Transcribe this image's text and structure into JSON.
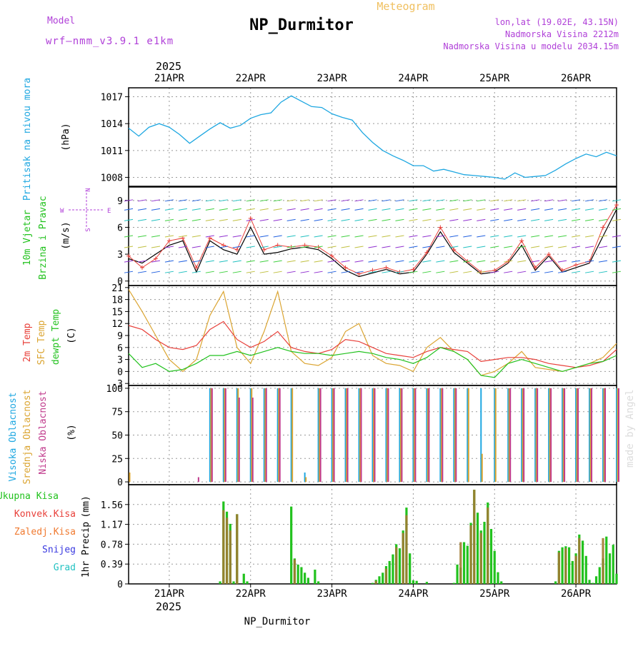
{
  "header": {
    "model_label": "Model",
    "model_name": "wrf–nmm_v3.9.1  e1km",
    "station": "NP_Durmitor",
    "subtitle": "Meteogram",
    "coords": "lon,lat (19.02E, 43.15N)",
    "elevation": "Nadmorska Visina 2212m",
    "model_elevation": "Nadmorska Visina u modelu 2034.15m",
    "year": "2025",
    "footer_station": "NP_Durmitor",
    "watermark": "made by Angel"
  },
  "colors": {
    "pressure": "#1ea7e1",
    "wind_label": "#22c21e",
    "temp_2m": "#e8403a",
    "temp_sfc": "#dba532",
    "dewpoint": "#22c21e",
    "cloud_high": "#1ea7e1",
    "cloud_mid": "#dba532",
    "cloud_low": "#c03a8c",
    "precip_total": "#22c21e",
    "precip_conv": "#e8403a",
    "precip_freeze": "#f07a30",
    "snow": "#3a3ae0",
    "hail": "#22c2c2",
    "header_purple": "#b040d8",
    "header_orange": "#f0c060"
  },
  "chart_data": [
    {
      "type": "line",
      "panel": "pressure",
      "ylabel": "Pritisak na nivou mora",
      "unit": "(hPa)",
      "x_ticks": [
        "21APR",
        "22APR",
        "23APR",
        "24APR",
        "25APR",
        "26APR"
      ],
      "x_start": "2025-04-20 12:00",
      "x_end": "2025-04-26 12:00",
      "y_ticks": [
        1008,
        1011,
        1014,
        1017
      ],
      "ylim": [
        1007,
        1018
      ],
      "series": [
        {
          "x": [
            0,
            3,
            6,
            9,
            12,
            15,
            18,
            21,
            24,
            27,
            30,
            33,
            36,
            39,
            42,
            45,
            48,
            51,
            54,
            57,
            60,
            63,
            66,
            69,
            72,
            75,
            78,
            81,
            84,
            87,
            90,
            93,
            96,
            99,
            102,
            105,
            108,
            111,
            114,
            117,
            120,
            123,
            126,
            129,
            132,
            135,
            138,
            141,
            144
          ],
          "values": [
            1013.5,
            1012.6,
            1013.6,
            1014.0,
            1013.6,
            1012.8,
            1011.8,
            1012.6,
            1013.4,
            1014.1,
            1013.5,
            1013.8,
            1014.6,
            1015.0,
            1015.2,
            1016.4,
            1017.1,
            1016.5,
            1015.9,
            1015.8,
            1015.1,
            1014.7,
            1014.4,
            1013.0,
            1011.9,
            1011.0,
            1010.4,
            1009.9,
            1009.3,
            1009.3,
            1008.7,
            1008.9,
            1008.6,
            1008.3,
            1008.2,
            1008.1,
            1008.0,
            1007.8,
            1008.5,
            1008.0,
            1008.1,
            1008.2,
            1008.8,
            1009.5,
            1010.1,
            1010.6,
            1010.3,
            1010.8,
            1010.4
          ]
        }
      ]
    },
    {
      "type": "line",
      "panel": "wind",
      "ylabel_lines": [
        "10m Vjetar",
        "Brzina i Pravac"
      ],
      "unit": "(m/s)",
      "compass": [
        "N",
        "E",
        "S",
        "W"
      ],
      "y_ticks": [
        0,
        3,
        6,
        9
      ],
      "ylim": [
        -0.5,
        10.5
      ],
      "series": [
        {
          "name": "speed",
          "x": [
            0,
            4,
            8,
            12,
            16,
            20,
            24,
            28,
            32,
            36,
            40,
            44,
            48,
            52,
            56,
            60,
            64,
            68,
            72,
            76,
            80,
            84,
            88,
            92,
            96,
            100,
            104,
            108,
            112,
            116,
            120,
            124,
            128,
            132,
            136,
            140,
            144
          ],
          "values": [
            2.5,
            2.0,
            3.0,
            4.0,
            4.5,
            1.0,
            4.5,
            3.5,
            3.0,
            6.0,
            3.0,
            3.2,
            3.6,
            3.8,
            3.5,
            2.5,
            1.2,
            0.5,
            0.9,
            1.3,
            0.8,
            1.0,
            3.0,
            5.5,
            3.2,
            2.0,
            0.8,
            1.0,
            2.0,
            4.0,
            1.2,
            2.8,
            1.0,
            1.5,
            2.0,
            5.0,
            8.0
          ]
        },
        {
          "name": "gust",
          "x": [
            0,
            4,
            8,
            12,
            16,
            20,
            24,
            28,
            32,
            36,
            40,
            44,
            48,
            52,
            56,
            60,
            64,
            68,
            72,
            76,
            80,
            84,
            88,
            92,
            96,
            100,
            104,
            108,
            112,
            116,
            120,
            124,
            128,
            132,
            136,
            140,
            144
          ],
          "values": [
            2.8,
            1.5,
            2.5,
            4.5,
            4.8,
            1.5,
            4.8,
            4.0,
            3.5,
            7.0,
            3.5,
            4.0,
            3.8,
            4.0,
            3.8,
            2.8,
            1.5,
            0.8,
            1.2,
            1.5,
            1.0,
            1.3,
            3.2,
            6.0,
            3.5,
            2.2,
            1.0,
            1.2,
            2.2,
            4.5,
            1.5,
            3.0,
            1.2,
            1.8,
            2.2,
            6.0,
            8.5
          ]
        }
      ]
    },
    {
      "type": "line",
      "panel": "temperature",
      "ylabel_lines": [
        "2m Temp",
        "SFC Temp",
        "dewpt Temp"
      ],
      "unit": "(C)",
      "y_ticks": [
        -3,
        0,
        3,
        6,
        9,
        12,
        15,
        18,
        21
      ],
      "ylim": [
        -3.5,
        21.5
      ],
      "series": [
        {
          "name": "2m Temp",
          "x": [
            0,
            4,
            8,
            12,
            16,
            20,
            24,
            28,
            32,
            36,
            40,
            44,
            48,
            52,
            56,
            60,
            64,
            68,
            72,
            76,
            80,
            84,
            88,
            92,
            96,
            100,
            104,
            108,
            112,
            116,
            120,
            124,
            128,
            132,
            136,
            140,
            144
          ],
          "values": [
            11.5,
            10.5,
            8.0,
            6.0,
            5.5,
            6.5,
            10.5,
            12.5,
            8.0,
            6.0,
            7.5,
            10.0,
            6.0,
            5.0,
            4.5,
            5.5,
            8.0,
            7.5,
            6.0,
            4.5,
            4.0,
            3.5,
            5.0,
            6.0,
            5.5,
            5.0,
            2.5,
            3.0,
            3.5,
            3.5,
            3.0,
            2.0,
            1.5,
            1.0,
            1.5,
            2.5,
            5.5
          ]
        },
        {
          "name": "SFC Temp",
          "x": [
            0,
            4,
            8,
            12,
            16,
            20,
            24,
            28,
            32,
            36,
            40,
            44,
            48,
            52,
            56,
            60,
            64,
            68,
            72,
            76,
            80,
            84,
            88,
            92,
            96,
            100,
            104,
            108,
            112,
            116,
            120,
            124,
            128,
            132,
            136,
            140,
            144
          ],
          "values": [
            20.5,
            15.0,
            9.0,
            3.0,
            0.0,
            3.0,
            14.0,
            20.0,
            6.0,
            2.0,
            10.0,
            20.0,
            5.0,
            2.0,
            1.5,
            3.5,
            10.0,
            12.0,
            4.0,
            2.0,
            1.5,
            0.0,
            6.0,
            8.5,
            5.0,
            3.0,
            -1.0,
            0.0,
            2.0,
            5.0,
            1.0,
            0.5,
            0.0,
            1.0,
            2.0,
            3.5,
            7.0
          ]
        },
        {
          "name": "dewpt Temp",
          "x": [
            0,
            4,
            8,
            12,
            16,
            20,
            24,
            28,
            32,
            36,
            40,
            44,
            48,
            52,
            56,
            60,
            64,
            68,
            72,
            76,
            80,
            84,
            88,
            92,
            96,
            100,
            104,
            108,
            112,
            116,
            120,
            124,
            128,
            132,
            136,
            140,
            144
          ],
          "values": [
            4.5,
            1.0,
            2.0,
            0.0,
            0.5,
            2.0,
            4.0,
            4.0,
            5.0,
            4.0,
            5.0,
            6.0,
            5.0,
            4.5,
            4.5,
            4.0,
            4.5,
            5.0,
            4.5,
            3.5,
            3.0,
            2.0,
            3.5,
            6.0,
            5.0,
            3.0,
            -1.0,
            -1.5,
            2.0,
            3.0,
            2.0,
            1.0,
            0.0,
            1.0,
            2.0,
            2.5,
            4.0
          ]
        }
      ]
    },
    {
      "type": "bar",
      "panel": "clouds",
      "ylabel_lines": [
        "Visoka Oblacnost",
        "Srednja Oblacnost",
        "Niska Oblacnost"
      ],
      "unit": "(%)",
      "y_ticks": [
        0,
        25,
        50,
        75,
        100
      ],
      "ylim": [
        -3,
        103
      ],
      "series": [
        {
          "name": "Visoka Oblacnost",
          "x": [
            0,
            4,
            8,
            12,
            16,
            20,
            24,
            28,
            32,
            36,
            40,
            44,
            48,
            52,
            56,
            60,
            64,
            68,
            72,
            76,
            80,
            84,
            88,
            92,
            96,
            100,
            104,
            108,
            112,
            116,
            120,
            124,
            128,
            132,
            136,
            140,
            144
          ],
          "values": [
            0,
            0,
            0,
            0,
            0,
            0,
            100,
            100,
            100,
            100,
            100,
            100,
            100,
            10,
            100,
            100,
            100,
            100,
            100,
            100,
            100,
            100,
            100,
            100,
            100,
            100,
            100,
            100,
            100,
            100,
            100,
            100,
            100,
            100,
            100,
            100,
            100
          ]
        },
        {
          "name": "Srednja Oblacnost",
          "x": [
            0,
            4,
            8,
            12,
            16,
            20,
            24,
            28,
            32,
            36,
            40,
            44,
            48,
            52,
            56,
            60,
            64,
            68,
            72,
            76,
            80,
            84,
            88,
            92,
            96,
            100,
            104,
            108,
            112,
            116,
            120,
            124,
            128,
            132,
            136,
            140,
            144
          ],
          "values": [
            10,
            0,
            0,
            0,
            0,
            0,
            100,
            100,
            100,
            100,
            100,
            100,
            100,
            5,
            100,
            100,
            100,
            100,
            100,
            100,
            100,
            100,
            100,
            100,
            100,
            100,
            30,
            100,
            100,
            100,
            100,
            100,
            100,
            100,
            100,
            100,
            100
          ]
        },
        {
          "name": "Niska Oblacnost",
          "x": [
            0,
            4,
            8,
            12,
            16,
            20,
            24,
            28,
            32,
            36,
            40,
            44,
            48,
            52,
            56,
            60,
            64,
            68,
            72,
            76,
            80,
            84,
            88,
            92,
            96,
            100,
            104,
            108,
            112,
            116,
            120,
            124,
            128,
            132,
            136,
            140,
            144
          ],
          "values": [
            0,
            0,
            0,
            0,
            0,
            5,
            100,
            100,
            90,
            90,
            100,
            100,
            0,
            0,
            100,
            100,
            100,
            100,
            100,
            100,
            100,
            100,
            100,
            100,
            100,
            0,
            0,
            0,
            100,
            100,
            100,
            100,
            100,
            100,
            100,
            100,
            100
          ]
        }
      ]
    },
    {
      "type": "bar",
      "panel": "precipitation",
      "ylabel": "1hr Precip",
      "unit": "(mm)",
      "legend": [
        "Ukupna Kisa",
        "Konvek.Kisa",
        "Zaledj.Kisa",
        "Snijeg",
        "Grad"
      ],
      "y_ticks": [
        0,
        0.39,
        0.78,
        1.17,
        1.56
      ],
      "ylim": [
        0,
        1.95
      ],
      "series": [
        {
          "name": "Ukupna Kisa",
          "x": [
            27,
            28,
            29,
            30,
            31,
            32,
            33,
            34,
            35,
            48,
            49,
            50,
            51,
            52,
            53,
            55,
            56,
            72,
            73,
            74,
            75,
            76,
            77,
            78,
            79,
            80,
            81,
            82,
            83,
            84,
            85,
            88,
            96,
            97,
            98,
            99,
            100,
            101,
            102,
            103,
            104,
            105,
            106,
            107,
            108,
            109,
            110,
            126,
            127,
            128,
            129,
            130,
            131,
            132,
            133,
            134,
            135,
            136,
            137,
            138,
            139,
            140,
            141,
            142,
            143,
            144
          ],
          "values": [
            0.05,
            1.62,
            1.42,
            1.18,
            0.05,
            1.37,
            0.0,
            0.2,
            0.05,
            1.52,
            0.5,
            0.38,
            0.33,
            0.22,
            0.12,
            0.28,
            0.05,
            0.02,
            0.08,
            0.15,
            0.22,
            0.35,
            0.45,
            0.58,
            0.78,
            0.7,
            1.05,
            1.5,
            0.6,
            0.07,
            0.06,
            0.04,
            0.02,
            0.38,
            0.32,
            0.82,
            0.75,
            1.2,
            1.85,
            1.4,
            1.05,
            1.22,
            1.6,
            1.08,
            0.65,
            0.23,
            0.05,
            0.05,
            0.65,
            0.72,
            0.74,
            0.72,
            0.45,
            0.6,
            0.97,
            0.85,
            0.55,
            0.08,
            0.02,
            0.15,
            0.33,
            0.5,
            0.93,
            0.6,
            0.77,
            0.2
          ]
        },
        {
          "name": "Konvek.Kisa",
          "x": [
            28,
            29,
            30,
            32,
            49,
            73,
            76,
            79,
            81,
            82,
            98,
            101,
            102,
            104,
            106,
            127,
            129,
            132,
            133,
            140
          ],
          "values": [
            1.45,
            1.3,
            1.05,
            1.37,
            0.48,
            0.06,
            0.3,
            0.72,
            1.0,
            1.35,
            0.82,
            1.15,
            1.85,
            1.0,
            1.5,
            0.62,
            0.7,
            0.55,
            0.9,
            0.9
          ]
        }
      ]
    }
  ]
}
